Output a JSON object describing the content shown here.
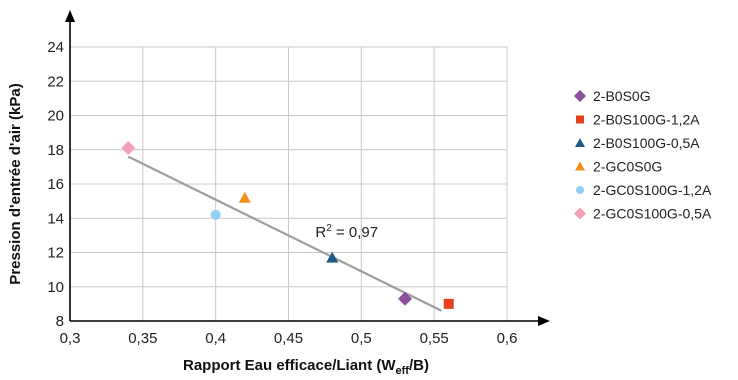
{
  "chart_data": {
    "type": "scatter",
    "xlabel_main": "Rapport Eau efficace/Liant (W",
    "xlabel_sub": "eff",
    "xlabel_tail": "/B)",
    "ylabel": "Pression d'entrée d'air (kPa)",
    "xlim": [
      0.3,
      0.6
    ],
    "ylim": [
      8,
      24
    ],
    "x_ticks": [
      0.3,
      0.35,
      0.4,
      0.45,
      0.5,
      0.55,
      0.6
    ],
    "x_tick_labels": [
      "0,3",
      "0,35",
      "0,4",
      "0,45",
      "0,5",
      "0,55",
      "0,6"
    ],
    "y_ticks": [
      8,
      10,
      12,
      14,
      16,
      18,
      20,
      22,
      24
    ],
    "y_tick_labels": [
      "8",
      "10",
      "12",
      "14",
      "16",
      "18",
      "20",
      "22",
      "24"
    ],
    "grid": "horizontal",
    "legend_position": "right",
    "series": [
      {
        "name": "2-B0S0G",
        "marker": "diamond",
        "color": "#8e4f9e",
        "x": [
          0.53
        ],
        "y": [
          9.3
        ]
      },
      {
        "name": "2-B0S100G-1,2A",
        "marker": "square",
        "color": "#e8401c",
        "x": [
          0.56
        ],
        "y": [
          9.0
        ]
      },
      {
        "name": "2-B0S100G-0,5A",
        "marker": "triangle",
        "color": "#1f5a85",
        "x": [
          0.48
        ],
        "y": [
          11.7
        ]
      },
      {
        "name": "2-GC0S0G",
        "marker": "triangle",
        "color": "#f39019",
        "x": [
          0.42
        ],
        "y": [
          15.2
        ]
      },
      {
        "name": "2-GC0S100G-1,2A",
        "marker": "circle",
        "color": "#8fd1f0",
        "x": [
          0.4
        ],
        "y": [
          14.2
        ]
      },
      {
        "name": "2-GC0S100G-0,5A",
        "marker": "diamond",
        "color": "#f2a1b6",
        "x": [
          0.34
        ],
        "y": [
          18.1
        ]
      }
    ],
    "trendline": {
      "color": "#9e9e9e",
      "x": [
        0.34,
        0.555
      ],
      "y": [
        17.6,
        8.6
      ]
    },
    "annotation_main": "R",
    "annotation_sup": "2",
    "annotation_tail": " = 0,97",
    "annotation_x": 0.49,
    "annotation_y": 12.9
  }
}
